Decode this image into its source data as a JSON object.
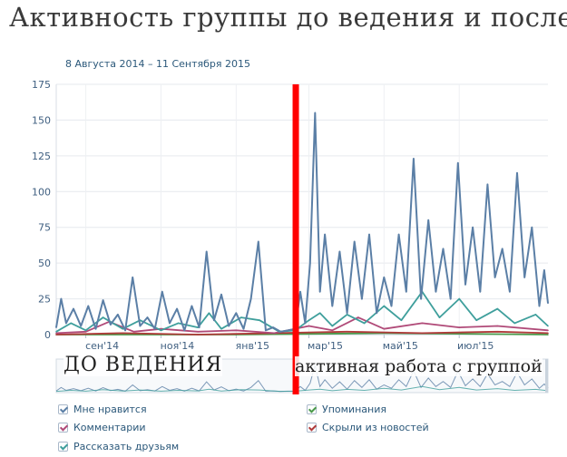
{
  "header": {
    "title": "Активность группы до ведения и после",
    "date_range": "8 Августа 2014 – 11 Сентября 2015"
  },
  "annotations": {
    "before": "ДО ВЕДЕНИЯ",
    "after": "активная работа с группой",
    "divider_color": "#ff0000",
    "divider_date": "2015-02-18"
  },
  "legend": [
    {
      "label": "Мне нравится",
      "color": "#5b7fa6",
      "checked": true
    },
    {
      "label": "Упоминания",
      "color": "#4a9a4a",
      "checked": true
    },
    {
      "label": "Комментарии",
      "color": "#b04a78",
      "checked": true
    },
    {
      "label": "Скрыли из новостей",
      "color": "#b03a3a",
      "checked": true
    },
    {
      "label": "Рассказать друзьям",
      "color": "#3f9f9c",
      "checked": true
    }
  ],
  "chart_data": {
    "type": "line",
    "x_range": [
      "2014-08-08",
      "2015-09-11"
    ],
    "ylim": [
      0,
      175
    ],
    "yticks": [
      "0",
      "25",
      "50",
      "75",
      "100",
      "125",
      "150",
      "175"
    ],
    "xticks": [
      {
        "label": "сен'14",
        "date": "2014-09-01"
      },
      {
        "label": "ноя'14",
        "date": "2014-11-01"
      },
      {
        "label": "янв'15",
        "date": "2015-01-01"
      },
      {
        "label": "мар'15",
        "date": "2015-03-01"
      },
      {
        "label": "май'15",
        "date": "2015-05-01"
      },
      {
        "label": "июл'15",
        "date": "2015-07-01"
      }
    ],
    "grid": true,
    "series": [
      {
        "name": "Мне нравится",
        "color": "#5b7fa6",
        "points": [
          [
            "2014-08-08",
            5
          ],
          [
            "2014-08-12",
            25
          ],
          [
            "2014-08-16",
            8
          ],
          [
            "2014-08-22",
            18
          ],
          [
            "2014-08-28",
            6
          ],
          [
            "2014-09-03",
            20
          ],
          [
            "2014-09-09",
            4
          ],
          [
            "2014-09-15",
            24
          ],
          [
            "2014-09-21",
            7
          ],
          [
            "2014-09-27",
            14
          ],
          [
            "2014-10-03",
            3
          ],
          [
            "2014-10-09",
            40
          ],
          [
            "2014-10-15",
            6
          ],
          [
            "2014-10-21",
            12
          ],
          [
            "2014-10-27",
            4
          ],
          [
            "2014-11-02",
            30
          ],
          [
            "2014-11-08",
            8
          ],
          [
            "2014-11-14",
            18
          ],
          [
            "2014-11-20",
            3
          ],
          [
            "2014-11-26",
            20
          ],
          [
            "2014-12-02",
            5
          ],
          [
            "2014-12-08",
            58
          ],
          [
            "2014-12-14",
            10
          ],
          [
            "2014-12-20",
            28
          ],
          [
            "2014-12-26",
            6
          ],
          [
            "2015-01-01",
            15
          ],
          [
            "2015-01-07",
            4
          ],
          [
            "2015-01-13",
            25
          ],
          [
            "2015-01-19",
            65
          ],
          [
            "2015-01-25",
            3
          ],
          [
            "2015-01-31",
            5
          ],
          [
            "2015-02-06",
            2
          ],
          [
            "2015-02-12",
            3
          ],
          [
            "2015-02-18",
            4
          ],
          [
            "2015-02-22",
            30
          ],
          [
            "2015-02-26",
            8
          ],
          [
            "2015-03-02",
            50
          ],
          [
            "2015-03-06",
            155
          ],
          [
            "2015-03-10",
            30
          ],
          [
            "2015-03-14",
            70
          ],
          [
            "2015-03-20",
            20
          ],
          [
            "2015-03-26",
            58
          ],
          [
            "2015-04-01",
            15
          ],
          [
            "2015-04-07",
            65
          ],
          [
            "2015-04-13",
            25
          ],
          [
            "2015-04-19",
            70
          ],
          [
            "2015-04-25",
            15
          ],
          [
            "2015-05-01",
            40
          ],
          [
            "2015-05-07",
            20
          ],
          [
            "2015-05-13",
            70
          ],
          [
            "2015-05-19",
            30
          ],
          [
            "2015-05-25",
            123
          ],
          [
            "2015-05-31",
            25
          ],
          [
            "2015-06-06",
            80
          ],
          [
            "2015-06-12",
            30
          ],
          [
            "2015-06-18",
            60
          ],
          [
            "2015-06-24",
            25
          ],
          [
            "2015-06-30",
            120
          ],
          [
            "2015-07-06",
            35
          ],
          [
            "2015-07-12",
            75
          ],
          [
            "2015-07-18",
            30
          ],
          [
            "2015-07-24",
            105
          ],
          [
            "2015-07-30",
            40
          ],
          [
            "2015-08-05",
            60
          ],
          [
            "2015-08-11",
            30
          ],
          [
            "2015-08-17",
            113
          ],
          [
            "2015-08-23",
            40
          ],
          [
            "2015-08-29",
            75
          ],
          [
            "2015-09-04",
            20
          ],
          [
            "2015-09-08",
            45
          ],
          [
            "2015-09-11",
            22
          ]
        ]
      },
      {
        "name": "Рассказать друзьям",
        "color": "#3f9f9c",
        "points": [
          [
            "2014-08-08",
            2
          ],
          [
            "2014-08-20",
            8
          ],
          [
            "2014-09-01",
            3
          ],
          [
            "2014-09-15",
            12
          ],
          [
            "2014-10-01",
            4
          ],
          [
            "2014-10-15",
            10
          ],
          [
            "2014-11-01",
            3
          ],
          [
            "2014-11-15",
            8
          ],
          [
            "2014-12-01",
            5
          ],
          [
            "2014-12-10",
            15
          ],
          [
            "2014-12-20",
            4
          ],
          [
            "2015-01-05",
            12
          ],
          [
            "2015-01-20",
            10
          ],
          [
            "2015-02-05",
            2
          ],
          [
            "2015-02-18",
            3
          ],
          [
            "2015-03-01",
            10
          ],
          [
            "2015-03-10",
            15
          ],
          [
            "2015-03-20",
            6
          ],
          [
            "2015-04-01",
            14
          ],
          [
            "2015-04-15",
            8
          ],
          [
            "2015-05-01",
            20
          ],
          [
            "2015-05-15",
            10
          ],
          [
            "2015-06-01",
            30
          ],
          [
            "2015-06-15",
            12
          ],
          [
            "2015-07-01",
            25
          ],
          [
            "2015-07-15",
            10
          ],
          [
            "2015-08-01",
            18
          ],
          [
            "2015-08-15",
            8
          ],
          [
            "2015-09-01",
            14
          ],
          [
            "2015-09-11",
            6
          ]
        ]
      },
      {
        "name": "Комментарии",
        "color": "#b04a78",
        "points": [
          [
            "2014-08-08",
            1
          ],
          [
            "2014-09-01",
            2
          ],
          [
            "2014-09-20",
            9
          ],
          [
            "2014-10-10",
            2
          ],
          [
            "2014-11-01",
            4
          ],
          [
            "2014-12-01",
            2
          ],
          [
            "2015-01-01",
            3
          ],
          [
            "2015-02-01",
            1
          ],
          [
            "2015-03-01",
            6
          ],
          [
            "2015-03-20",
            3
          ],
          [
            "2015-04-10",
            12
          ],
          [
            "2015-05-01",
            4
          ],
          [
            "2015-06-01",
            8
          ],
          [
            "2015-07-01",
            5
          ],
          [
            "2015-08-01",
            6
          ],
          [
            "2015-09-11",
            3
          ]
        ]
      },
      {
        "name": "Скрыли из новостей",
        "color": "#b03a3a",
        "points": [
          [
            "2014-08-08",
            0
          ],
          [
            "2014-10-01",
            1
          ],
          [
            "2014-12-01",
            0
          ],
          [
            "2015-02-01",
            1
          ],
          [
            "2015-04-01",
            2
          ],
          [
            "2015-06-01",
            1
          ],
          [
            "2015-08-01",
            2
          ],
          [
            "2015-09-11",
            1
          ]
        ]
      },
      {
        "name": "Упоминания",
        "color": "#4a9a4a",
        "points": [
          [
            "2014-08-08",
            0
          ],
          [
            "2015-01-01",
            0
          ],
          [
            "2015-05-01",
            1
          ],
          [
            "2015-09-11",
            0
          ]
        ]
      }
    ]
  }
}
